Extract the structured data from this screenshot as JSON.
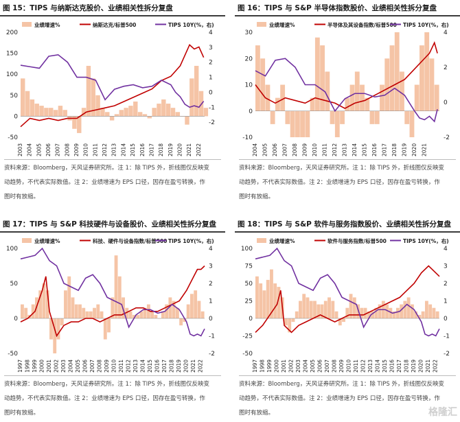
{
  "watermark": "格隆汇",
  "colors": {
    "bar": "#f5c4a6",
    "line_red": "#c00000",
    "line_purple": "#7030a0"
  },
  "chart_data": [
    {
      "id": "p15",
      "type": "bar+line",
      "title": "图 15：TIPS 与纳斯达克股价、业绩相关性拆分复盘",
      "legend": [
        "业绩增速%",
        "纳斯达克/标普500",
        "TIPS 10Y(%，右)"
      ],
      "ylim": [
        -50,
        200
      ],
      "yticks": [
        -50,
        0,
        50,
        100,
        150,
        200
      ],
      "ylim_right": [
        -3,
        4
      ],
      "yticks_right": [
        -2,
        -1,
        0,
        1,
        2,
        3,
        4
      ],
      "x": [
        2003,
        2004,
        2005,
        2006,
        2007,
        2008,
        2009,
        2010,
        2011,
        2012,
        2013,
        2014,
        2015,
        2016,
        2017,
        2018,
        2019,
        2020,
        2021,
        2022
      ],
      "x_end": 2022.6,
      "xticks": [
        "2003",
        "2004",
        "2005",
        "2006",
        "2007",
        "2008",
        "2009",
        "2010",
        "2011",
        "2012",
        "2013",
        "2014",
        "2015",
        "2016",
        "2017",
        "2018",
        "2019",
        "2020",
        "2021",
        "2022"
      ],
      "bars_x": [
        2003.0,
        2003.5,
        2004.0,
        2004.5,
        2005.0,
        2005.5,
        2006.0,
        2006.5,
        2007.0,
        2007.5,
        2008.0,
        2008.5,
        2009.0,
        2009.5,
        2010.0,
        2010.5,
        2011.0,
        2011.5,
        2012.0,
        2012.5,
        2013.0,
        2013.5,
        2014.0,
        2014.5,
        2015.0,
        2015.5,
        2016.0,
        2016.5,
        2017.0,
        2017.5,
        2018.0,
        2018.5,
        2019.0,
        2019.5,
        2020.0,
        2020.5,
        2021.0,
        2021.5,
        2022.0,
        2022.5
      ],
      "bars": [
        90,
        60,
        40,
        30,
        25,
        20,
        20,
        15,
        25,
        15,
        -10,
        -30,
        -40,
        20,
        120,
        90,
        50,
        20,
        10,
        -10,
        5,
        15,
        20,
        25,
        35,
        10,
        5,
        -5,
        20,
        30,
        40,
        30,
        20,
        10,
        0,
        -20,
        90,
        120,
        60,
        20
      ],
      "line_red_x": [
        2003,
        2004,
        2005,
        2006,
        2007,
        2008,
        2009,
        2010,
        2011,
        2012,
        2013,
        2014,
        2015,
        2016,
        2017,
        2018,
        2019,
        2020,
        2021,
        2021.5,
        2022,
        2022.5
      ],
      "line_red": [
        -25,
        -5,
        -10,
        -5,
        -10,
        -5,
        -5,
        10,
        15,
        20,
        25,
        35,
        45,
        55,
        65,
        85,
        95,
        120,
        170,
        160,
        165,
        140
      ],
      "line_purple_x": [
        2003,
        2004,
        2005,
        2006,
        2007,
        2008,
        2009,
        2010,
        2011,
        2012,
        2013,
        2014,
        2015,
        2016,
        2017,
        2018,
        2019,
        2019.5,
        2020,
        2020.5,
        2021,
        2021.5,
        2022,
        2022.5
      ],
      "line_purple": [
        1.8,
        1.7,
        1.6,
        2.4,
        2.5,
        2.0,
        1.0,
        1.0,
        0.8,
        -0.5,
        0.2,
        0.4,
        0.5,
        0.3,
        0.4,
        0.8,
        0.5,
        0.0,
        -0.3,
        -0.8,
        -1.0,
        -0.9,
        -1.0,
        -0.6
      ]
    },
    {
      "id": "p16",
      "type": "bar+line",
      "title": "图 16：TIPS 与 S&P 半导体指数股价、业绩相关性拆分复盘",
      "legend": [
        "业绩增速%",
        "半导体及其设备指数/标普500",
        "TIPS 10Y(%，右)"
      ],
      "ylim": [
        -10,
        30
      ],
      "yticks": [
        -10,
        0,
        10,
        20,
        30
      ],
      "ylim_right": [
        -2,
        4
      ],
      "yticks_right": [
        -2,
        0,
        2,
        4
      ],
      "x": [
        2004,
        2005,
        2006,
        2007,
        2008,
        2009,
        2010,
        2011,
        2012,
        2013,
        2014,
        2015,
        2016,
        2017,
        2018,
        2019,
        2020,
        2021
      ],
      "x_end": 2022.5,
      "xticks": [
        "2004",
        "2005",
        "2006",
        "2007",
        "2008",
        "2009",
        "2010",
        "2011",
        "2012",
        "2013",
        "2014",
        "2015",
        "2016",
        "2017",
        "2018",
        "2019",
        "2020",
        "2021"
      ],
      "bars_x": [
        2004.0,
        2004.5,
        2005.0,
        2005.5,
        2006.0,
        2006.5,
        2007.0,
        2007.5,
        2008.0,
        2008.5,
        2009.0,
        2009.5,
        2010.0,
        2010.5,
        2011.0,
        2011.5,
        2012.0,
        2012.5,
        2013.0,
        2013.5,
        2014.0,
        2014.5,
        2015.0,
        2015.5,
        2016.0,
        2016.5,
        2017.0,
        2017.5,
        2018.0,
        2018.5,
        2019.0,
        2019.5,
        2020.0,
        2020.5,
        2021.0,
        2021.5,
        2022.0
      ],
      "bars": [
        25,
        20,
        10,
        -5,
        5,
        10,
        -5,
        -10,
        -10,
        -10,
        -10,
        5,
        28,
        25,
        15,
        -5,
        -10,
        -5,
        5,
        10,
        15,
        10,
        5,
        -5,
        -5,
        10,
        20,
        25,
        30,
        15,
        -5,
        -10,
        10,
        25,
        30,
        20,
        10
      ],
      "line_red_x": [
        2004,
        2005,
        2006,
        2007,
        2008,
        2009,
        2010,
        2011,
        2012,
        2013,
        2014,
        2015,
        2016,
        2017,
        2018,
        2019,
        2020,
        2021,
        2021.5,
        2022,
        2022.3
      ],
      "line_red": [
        10,
        5,
        3,
        5,
        4,
        3,
        5,
        4,
        3,
        1,
        3,
        4,
        6,
        8,
        10,
        12,
        16,
        20,
        22,
        26,
        22
      ],
      "line_purple_x": [
        2004,
        2005,
        2006,
        2007,
        2008,
        2009,
        2010,
        2011,
        2012,
        2013,
        2014,
        2015,
        2016,
        2017,
        2018,
        2019,
        2020,
        2020.5,
        2021,
        2021.5,
        2022,
        2022.3
      ],
      "line_purple": [
        1.8,
        1.5,
        2.4,
        2.5,
        2.0,
        1.0,
        1.0,
        0.6,
        -0.5,
        0.2,
        0.5,
        0.5,
        0.3,
        0.4,
        0.8,
        0.4,
        -0.5,
        -0.9,
        -1.0,
        -0.8,
        -1.1,
        -0.4
      ]
    },
    {
      "id": "p17",
      "type": "bar+line",
      "title": "图 17：TIPS 与 S&P 科技硬件与设备股价、业绩相关性拆分复盘",
      "legend": [
        "业绩增速%",
        "科技、硬件与设备指数/标普500",
        "TIPS 10Y(%，右)"
      ],
      "ylim": [
        -50,
        100
      ],
      "yticks": [
        -50,
        0,
        50,
        100
      ],
      "ylim_right": [
        -2,
        4
      ],
      "yticks_right": [
        -2,
        -1,
        0,
        1,
        2,
        3,
        4
      ],
      "x": [
        1997,
        1998,
        1999,
        2000,
        2001,
        2002,
        2003,
        2004,
        2005,
        2006,
        2007,
        2008,
        2009,
        2010,
        2011,
        2012,
        2013,
        2014,
        2015,
        2016,
        2017,
        2018,
        2019,
        2020,
        2021,
        2022
      ],
      "x_end": 2022.5,
      "xticks": [
        "1997",
        "1998",
        "1999",
        "2000",
        "2001",
        "2002",
        "2003",
        "2004",
        "2005",
        "2006",
        "2007",
        "2008",
        "2009",
        "2010",
        "2011",
        "2012",
        "2013",
        "2014",
        "2015",
        "2016",
        "2017",
        "2018",
        "2019",
        "2020",
        "2021",
        "2022"
      ],
      "bars_x": [
        1997.0,
        1997.5,
        1998.0,
        1998.5,
        1999.0,
        1999.5,
        2000.0,
        2000.5,
        2001.0,
        2001.5,
        2002.0,
        2002.5,
        2003.0,
        2003.5,
        2004.0,
        2004.5,
        2005.0,
        2005.5,
        2006.0,
        2006.5,
        2007.0,
        2007.5,
        2008.0,
        2008.5,
        2009.0,
        2009.5,
        2010.0,
        2010.5,
        2011.0,
        2011.5,
        2012.0,
        2012.5,
        2013.0,
        2013.5,
        2014.0,
        2014.5,
        2015.0,
        2015.5,
        2016.0,
        2016.5,
        2017.0,
        2017.5,
        2018.0,
        2018.5,
        2019.0,
        2019.5,
        2020.0,
        2020.5,
        2021.0,
        2021.5,
        2022.0
      ],
      "bars": [
        20,
        15,
        5,
        20,
        30,
        40,
        50,
        40,
        -30,
        -50,
        -30,
        -10,
        40,
        60,
        30,
        20,
        20,
        15,
        10,
        10,
        15,
        20,
        10,
        -30,
        -20,
        30,
        90,
        60,
        30,
        15,
        10,
        5,
        5,
        10,
        15,
        20,
        10,
        5,
        0,
        10,
        20,
        30,
        25,
        15,
        -10,
        -5,
        20,
        35,
        40,
        25,
        10
      ],
      "line_red_x": [
        1997,
        1998,
        1999,
        2000,
        2000.5,
        2001,
        2002,
        2003,
        2004,
        2005,
        2006,
        2007,
        2008,
        2009,
        2010,
        2011,
        2012,
        2013,
        2014,
        2015,
        2016,
        2017,
        2018,
        2019,
        2020,
        2021,
        2021.5,
        2022,
        2022.5
      ],
      "line_red": [
        -5,
        0,
        10,
        40,
        60,
        10,
        -25,
        -10,
        -5,
        -5,
        0,
        0,
        -5,
        0,
        5,
        5,
        10,
        15,
        15,
        10,
        10,
        15,
        20,
        25,
        40,
        60,
        70,
        70,
        75
      ],
      "line_purple_x": [
        1997,
        1998,
        1999,
        2000,
        2001,
        2002,
        2003,
        2004,
        2005,
        2006,
        2007,
        2008,
        2009,
        2010,
        2011,
        2012,
        2013,
        2014,
        2015,
        2016,
        2017,
        2018,
        2019,
        2020,
        2020.5,
        2021,
        2021.5,
        2022,
        2022.5
      ],
      "line_purple": [
        3.4,
        3.5,
        3.6,
        4.0,
        3.3,
        3.0,
        2.0,
        1.8,
        1.6,
        2.3,
        2.5,
        2.0,
        1.2,
        1.0,
        0.8,
        -0.5,
        0.2,
        0.5,
        0.5,
        0.3,
        0.4,
        0.8,
        0.5,
        -0.2,
        -0.9,
        -1.0,
        -0.9,
        -1.0,
        -0.6
      ]
    },
    {
      "id": "p18",
      "type": "bar+line",
      "title": "图 18：TIPS 与 S&P 软件与服务指数股价、业绩相关性拆分复盘",
      "legend": [
        "业绩增速%",
        "软件与服务指数/标普500",
        "TIPS 10Y(%，右)"
      ],
      "ylim": [
        -50,
        100
      ],
      "yticks": [
        -50,
        -25,
        0,
        25,
        50,
        75,
        100
      ],
      "ylim_right": [
        -2,
        4
      ],
      "yticks_right": [
        -2,
        -1,
        0,
        1,
        2,
        3,
        4
      ],
      "x": [
        1997,
        1998,
        1999,
        2000,
        2001,
        2002,
        2003,
        2004,
        2005,
        2006,
        2007,
        2008,
        2009,
        2010,
        2011,
        2012,
        2013,
        2014,
        2015,
        2016,
        2017,
        2018,
        2019,
        2020,
        2021,
        2022
      ],
      "x_end": 2022.5,
      "xticks": [
        "1997",
        "1998",
        "1999",
        "2000",
        "2001",
        "2002",
        "2003",
        "2004",
        "2005",
        "2006",
        "2007",
        "2008",
        "2009",
        "2010",
        "2011",
        "2012",
        "2013",
        "2014",
        "2015",
        "2016",
        "2017",
        "2018",
        "2019",
        "2020",
        "2021",
        "2022"
      ],
      "bars_x": [
        1997.0,
        1997.5,
        1998.0,
        1998.5,
        1999.0,
        1999.5,
        2000.0,
        2000.5,
        2001.0,
        2001.5,
        2002.0,
        2002.5,
        2003.0,
        2003.5,
        2004.0,
        2004.5,
        2005.0,
        2005.5,
        2006.0,
        2006.5,
        2007.0,
        2007.5,
        2008.0,
        2008.5,
        2009.0,
        2009.5,
        2010.0,
        2010.5,
        2011.0,
        2011.5,
        2012.0,
        2012.5,
        2013.0,
        2013.5,
        2014.0,
        2014.5,
        2015.0,
        2015.5,
        2016.0,
        2016.5,
        2017.0,
        2017.5,
        2018.0,
        2018.5,
        2019.0,
        2019.5,
        2020.0,
        2020.5,
        2021.0,
        2021.5,
        2022.0
      ],
      "bars": [
        60,
        50,
        40,
        55,
        70,
        50,
        45,
        30,
        -10,
        -20,
        -5,
        10,
        25,
        35,
        30,
        25,
        25,
        20,
        20,
        25,
        30,
        25,
        10,
        -10,
        -5,
        15,
        35,
        30,
        20,
        15,
        15,
        10,
        10,
        15,
        20,
        25,
        20,
        15,
        10,
        15,
        20,
        25,
        30,
        20,
        10,
        5,
        10,
        25,
        20,
        15,
        10
      ],
      "line_red_x": [
        1997,
        1998,
        1999,
        2000,
        2000.5,
        2001,
        2002,
        2003,
        2004,
        2005,
        2006,
        2007,
        2008,
        2009,
        2010,
        2011,
        2012,
        2013,
        2014,
        2015,
        2016,
        2017,
        2018,
        2019,
        2020,
        2021,
        2021.5,
        2022,
        2022.5
      ],
      "line_red": [
        -20,
        -10,
        5,
        20,
        40,
        -10,
        -20,
        -10,
        -5,
        0,
        5,
        0,
        -5,
        0,
        5,
        5,
        5,
        10,
        15,
        20,
        25,
        30,
        40,
        50,
        65,
        75,
        70,
        65,
        60
      ],
      "line_purple_x": [
        1997,
        1998,
        1999,
        2000,
        2001,
        2002,
        2003,
        2004,
        2005,
        2006,
        2007,
        2008,
        2009,
        2010,
        2011,
        2012,
        2013,
        2014,
        2015,
        2016,
        2017,
        2018,
        2019,
        2020,
        2020.5,
        2021,
        2021.5,
        2022,
        2022.5
      ],
      "line_purple": [
        3.4,
        3.5,
        3.6,
        4.0,
        3.3,
        3.0,
        2.0,
        1.8,
        1.6,
        2.3,
        2.5,
        2.0,
        1.2,
        1.0,
        0.8,
        -0.5,
        0.2,
        0.5,
        0.5,
        0.3,
        0.4,
        0.8,
        0.5,
        -0.2,
        -0.9,
        -1.0,
        -0.9,
        -1.0,
        -0.6
      ]
    }
  ],
  "notes": [
    {
      "line1": "资料来源：Bloomberg，天风证券研究所。注 1：除 TIPS 外，折线图仅反映变",
      "line2": "动趋势，不代表实际数值。注 2：业绩增速为 EPS 口径，因存在盈亏转换，作",
      "line3": "图时有放缩。"
    },
    {
      "line1": "资料来源：Bloomberg，天风证券研究所。注 1：除 TIPS 外，折线图仅反映变",
      "line2": "动趋势，不代表实际数值。注 2：业绩增速为 EPS 口径，因存在盈亏转换，作",
      "line3": "图时有放缩。"
    },
    {
      "line1": "资料来源：Bloomberg，天风证券研究所。注 1：除 TIPS 外，折线图仅反映变",
      "line2": "动趋势，不代表实际数值。注 2：业绩增速为 EPS 口径，因存在盈亏转换，作",
      "line3": "图时有放缩。"
    },
    {
      "line1": "资料来源：Bloomberg，天风证券研究所。注 1：除 TIPS 外，折线图仅反映变",
      "line2": "动趋势，不代表实际数值。注 2：业绩增速为 EPS 口径，因存在盈亏转换，作",
      "line3": "图时有放缩。"
    }
  ]
}
